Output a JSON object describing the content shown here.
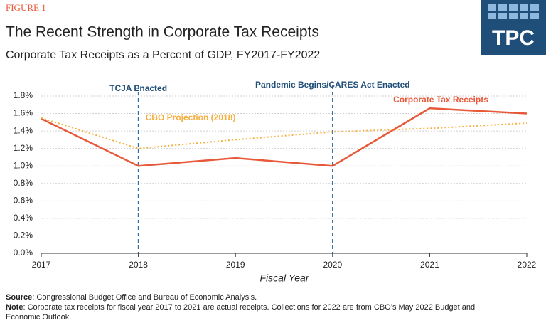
{
  "chart_data": {
    "type": "line",
    "figure_label": "FIGURE 1",
    "title": "The Recent Strength in Corporate Tax Receipts",
    "subtitle": "Corporate Tax Receipts as a Percent of GDP, FY2017-FY2022",
    "logo": "TPC",
    "x_label": "Fiscal Year",
    "x": [
      2017,
      2018,
      2019,
      2020,
      2021,
      2022
    ],
    "xlim": [
      2017,
      2022
    ],
    "xticks": [
      2017,
      2018,
      2019,
      2020,
      2021,
      2022
    ],
    "ylim": [
      0,
      1.8
    ],
    "yticks": [
      {
        "value": 0,
        "label": "0.0%"
      },
      {
        "value": 0.2,
        "label": "0.2%"
      },
      {
        "value": 0.4,
        "label": "0.4%"
      },
      {
        "value": 0.6,
        "label": "0.6%"
      },
      {
        "value": 0.8,
        "label": "0.8%"
      },
      {
        "value": 1.0,
        "label": "1.0%"
      },
      {
        "value": 1.2,
        "label": "1.2%"
      },
      {
        "value": 1.4,
        "label": "1.4%"
      },
      {
        "value": 1.6,
        "label": "1.6%"
      },
      {
        "value": 1.8,
        "label": "1.8%"
      }
    ],
    "grid": true,
    "series": [
      {
        "name": "Corporate Tax Receipts",
        "color": "#e8593a",
        "style": "solid",
        "values": [
          1.54,
          1.0,
          1.09,
          1.0,
          1.66,
          1.6
        ]
      },
      {
        "name": "CBO Projection (2018)",
        "color": "#f5b041",
        "style": "dotted",
        "values": [
          1.55,
          1.2,
          1.3,
          1.39,
          1.43,
          1.49
        ]
      }
    ],
    "events": [
      {
        "x": 2018,
        "label": "TCJA Enacted"
      },
      {
        "x": 2020,
        "label": "Pandemic Begins/CARES Act Enacted"
      }
    ],
    "notes": [
      {
        "label": "Source",
        "text": ": Congressional Budget Office and Bureau of Economic Analysis."
      },
      {
        "label": "Note",
        "text": ": Corporate tax receipts for fiscal year 2017 to 2021 are actual receipts. Collections for 2022 are from CBO’s May 2022 Budget and",
        "text2": "Economic Outlook."
      }
    ]
  }
}
